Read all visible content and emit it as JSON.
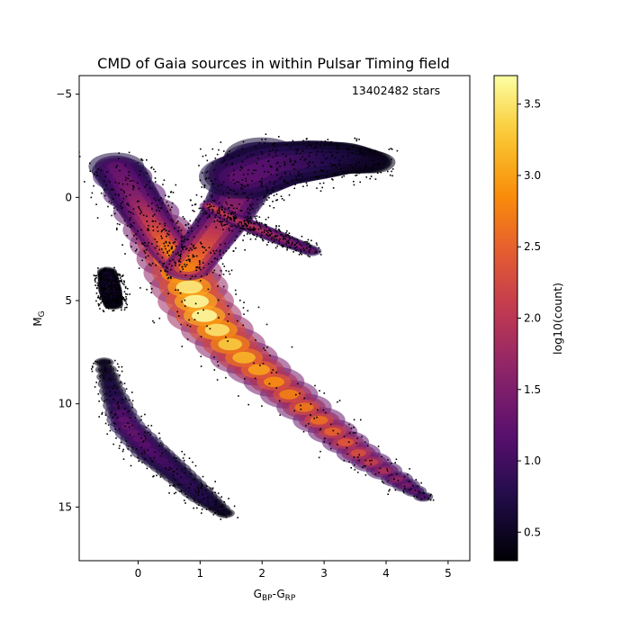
{
  "chart_data": {
    "type": "heatmap",
    "title": "CMD of Gaia sources in within Pulsar Timing field",
    "xlabel": {
      "main": "G",
      "sub1": "BP",
      "mid": "-G",
      "sub2": "RP"
    },
    "ylabel": {
      "main": "M",
      "sub": "G"
    },
    "annotation": "13402482 stars",
    "x_range": [
      -0.95,
      5.35
    ],
    "y_range": [
      17.6,
      -5.9
    ],
    "y_inverted": true,
    "x_ticks": [
      {
        "value": 0,
        "label": "0"
      },
      {
        "value": 1,
        "label": "1"
      },
      {
        "value": 2,
        "label": "2"
      },
      {
        "value": 3,
        "label": "3"
      },
      {
        "value": 4,
        "label": "4"
      },
      {
        "value": 5,
        "label": "5"
      }
    ],
    "y_ticks": [
      {
        "value": -5,
        "label": "−5"
      },
      {
        "value": 0,
        "label": "0"
      },
      {
        "value": 5,
        "label": "5"
      },
      {
        "value": 10,
        "label": "10"
      },
      {
        "value": 15,
        "label": "15"
      }
    ],
    "colorbar": {
      "label": "log10(count)",
      "colormap": "inferno",
      "range": [
        0.3,
        3.7
      ],
      "ticks": [
        {
          "value": 0.5,
          "label": "0.5"
        },
        {
          "value": 1.0,
          "label": "1.0"
        },
        {
          "value": 1.5,
          "label": "1.5"
        },
        {
          "value": 2.0,
          "label": "2.0"
        },
        {
          "value": 2.5,
          "label": "2.5"
        },
        {
          "value": 3.0,
          "label": "3.0"
        },
        {
          "value": 3.5,
          "label": "3.5"
        }
      ]
    },
    "density_regions": [
      {
        "name": "main-sequence",
        "path": [
          [
            -0.25,
            -1.0
          ],
          [
            0.3,
            1.5
          ],
          [
            0.7,
            3.5
          ],
          [
            1.0,
            5.5
          ],
          [
            1.6,
            7.5
          ],
          [
            2.3,
            9.2
          ],
          [
            3.0,
            11.0
          ],
          [
            3.6,
            12.5
          ],
          [
            4.2,
            13.7
          ],
          [
            4.6,
            14.5
          ]
        ],
        "width": [
          0.3,
          0.35,
          0.4,
          0.38,
          0.35,
          0.3,
          0.26,
          0.22,
          0.16,
          0.1
        ],
        "level": [
          1.9,
          2.7,
          3.3,
          3.6,
          3.1,
          2.7,
          2.5,
          2.2,
          1.6,
          1.1
        ]
      },
      {
        "name": "upper-ms-blue-plume",
        "path": [
          [
            -0.35,
            -1.5
          ],
          [
            -0.05,
            0.0
          ],
          [
            0.2,
            1.2
          ],
          [
            0.5,
            2.5
          ],
          [
            0.8,
            3.5
          ]
        ],
        "width": [
          0.28,
          0.26,
          0.24,
          0.22,
          0.22
        ],
        "level": [
          1.2,
          1.5,
          2.0,
          2.6,
          3.0
        ]
      },
      {
        "name": "subgiant-branch",
        "path": [
          [
            0.8,
            3.4
          ],
          [
            1.1,
            2.2
          ],
          [
            1.4,
            1.0
          ],
          [
            1.7,
            -0.6
          ],
          [
            2.0,
            -2.0
          ]
        ],
        "width": [
          0.25,
          0.26,
          0.28,
          0.32,
          0.38
        ],
        "level": [
          2.7,
          2.2,
          1.7,
          1.3,
          1.0
        ]
      },
      {
        "name": "red-clump",
        "path": [
          [
            1.15,
            0.4
          ],
          [
            1.5,
            1.0
          ],
          [
            1.9,
            1.5
          ],
          [
            2.3,
            2.0
          ],
          [
            2.8,
            2.6
          ]
        ],
        "width": [
          0.1,
          0.11,
          0.12,
          0.12,
          0.1
        ],
        "level": [
          2.1,
          1.9,
          1.8,
          1.6,
          1.3
        ]
      },
      {
        "name": "red-giant-branch",
        "path": [
          [
            1.7,
            -1.0
          ],
          [
            2.2,
            -1.6
          ],
          [
            2.8,
            -1.8
          ],
          [
            3.3,
            -1.9
          ],
          [
            3.8,
            -1.7
          ]
        ],
        "width": [
          0.45,
          0.45,
          0.4,
          0.32,
          0.22
        ],
        "level": [
          1.2,
          1.1,
          0.9,
          0.7,
          0.5
        ]
      },
      {
        "name": "white-dwarf-sequence",
        "path": [
          [
            -0.55,
            8.0
          ],
          [
            -0.4,
            9.5
          ],
          [
            -0.2,
            11.0
          ],
          [
            0.2,
            12.3
          ],
          [
            0.6,
            13.3
          ],
          [
            1.0,
            14.4
          ],
          [
            1.4,
            15.3
          ]
        ],
        "width": [
          0.1,
          0.14,
          0.18,
          0.2,
          0.18,
          0.16,
          0.1
        ],
        "level": [
          0.5,
          0.8,
          1.3,
          1.1,
          0.9,
          0.8,
          0.5
        ]
      },
      {
        "name": "hot-subdwarf-clump",
        "path": [
          [
            -0.5,
            3.6
          ],
          [
            -0.45,
            4.5
          ],
          [
            -0.4,
            5.2
          ]
        ],
        "width": [
          0.1,
          0.12,
          0.1
        ],
        "level": [
          0.5,
          0.6,
          0.4
        ]
      }
    ]
  }
}
